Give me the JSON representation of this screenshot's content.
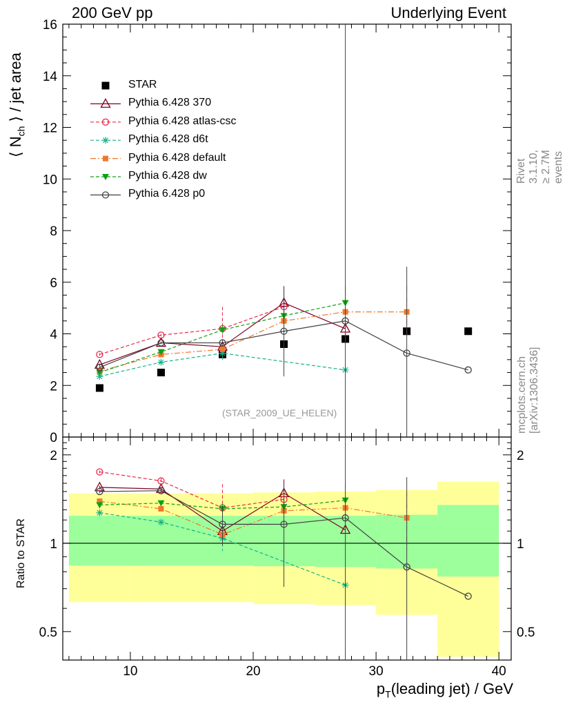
{
  "header": {
    "left": "200 GeV pp",
    "right": "Underlying Event"
  },
  "side_text": {
    "rivet": "Rivet 3.1.10, ≥ 2.7M events",
    "mcplots": "mcplots.cern.ch [arXiv:1306.3436]"
  },
  "watermark": "(STAR_2009_UE_HELEN)",
  "labels": {
    "ytop_prefix": "⟨ N",
    "ytop_sub": "ch",
    "ytop_suffix": " ⟩ / jet area",
    "ybottom": "Ratio to STAR",
    "x_prefix": "p",
    "x_sub": "T",
    "x_suffix": "(leading jet) / GeV"
  },
  "colors": {
    "star": "#000000",
    "p370": "#7f0020",
    "atlas": "#e8284a",
    "d6t": "#14b38a",
    "default": "#f0782a",
    "dw": "#0fa014",
    "p0": "#404040",
    "band_inner": "#9cff9c",
    "band_outer": "#ffff99"
  },
  "chart_data": [
    {
      "type": "line",
      "panel": "main",
      "xlim": [
        4.5,
        41
      ],
      "ylim": [
        0,
        16
      ],
      "xticks": [
        10,
        20,
        30,
        40
      ],
      "yticks": [
        0,
        2,
        4,
        6,
        8,
        10,
        12,
        14,
        16
      ],
      "series": [
        {
          "name": "STAR",
          "marker": "square",
          "color": "#000000",
          "x": [
            7.5,
            12.5,
            17.5,
            22.5,
            27.5,
            32.5,
            37.5
          ],
          "y": [
            1.9,
            2.5,
            3.2,
            3.6,
            3.8,
            4.1,
            4.1
          ]
        },
        {
          "name": "Pythia 6.428 370",
          "marker": "triangle-open",
          "color": "#7f0020",
          "dash": "",
          "x": [
            7.5,
            12.5,
            17.5,
            22.5,
            27.5
          ],
          "y": [
            2.8,
            3.65,
            3.5,
            5.2,
            4.2
          ],
          "err": [
            0.05,
            0.05,
            0.1,
            0.65,
            0
          ]
        },
        {
          "name": "Pythia 6.428 atlas-csc",
          "marker": "circle-open",
          "color": "#e8284a",
          "dash": "5,3",
          "x": [
            7.5,
            12.5,
            17.5,
            22.5
          ],
          "y": [
            3.2,
            3.95,
            4.2,
            5.05
          ],
          "err": [
            0.05,
            0.05,
            0.85,
            0.7
          ]
        },
        {
          "name": "Pythia 6.428 d6t",
          "marker": "asterisk",
          "color": "#14b38a",
          "dash": "5,3",
          "x": [
            7.5,
            12.5,
            17.5,
            27.5
          ],
          "y": [
            2.35,
            2.9,
            3.25,
            2.6
          ],
          "err": [
            0.05,
            0.05,
            0.3,
            0
          ]
        },
        {
          "name": "Pythia 6.428 default",
          "marker": "square-filled",
          "color": "#f0782a",
          "dash": "8,3,2,3",
          "x": [
            7.5,
            12.5,
            17.5,
            22.5,
            27.5,
            32.5
          ],
          "y": [
            2.55,
            3.2,
            3.4,
            4.5,
            4.85,
            4.85
          ],
          "err": [
            0.05,
            0.05,
            0.1,
            0.3,
            1.0,
            1.0
          ]
        },
        {
          "name": "Pythia 6.428 dw",
          "marker": "triangle-down-filled",
          "color": "#0fa014",
          "dash": "5,3",
          "x": [
            7.5,
            12.5,
            17.5,
            22.5,
            27.5
          ],
          "y": [
            2.5,
            3.3,
            4.15,
            4.7,
            5.2
          ],
          "err": [
            0.05,
            0.05,
            0.2,
            0.3,
            0
          ]
        },
        {
          "name": "Pythia 6.428 p0",
          "marker": "circle-open",
          "color": "#404040",
          "dash": "",
          "x": [
            7.5,
            12.5,
            17.5,
            22.5,
            27.5,
            32.5,
            37.5
          ],
          "y": [
            2.7,
            3.65,
            3.65,
            4.1,
            4.5,
            3.25,
            2.6
          ],
          "err": [
            0.05,
            0.05,
            0.1,
            1.75,
            20,
            3.35,
            0
          ]
        }
      ]
    },
    {
      "type": "line",
      "panel": "ratio",
      "xlim": [
        4.5,
        41
      ],
      "ylim": [
        0.4,
        2.3
      ],
      "yscale": "log",
      "yticks": [
        0.5,
        1,
        2
      ],
      "bands": [
        {
          "x0": 5,
          "x1": 10,
          "inner": [
            0.84,
            1.24
          ],
          "outer": [
            0.63,
            1.48
          ]
        },
        {
          "x0": 10,
          "x1": 20,
          "inner": [
            0.84,
            1.24
          ],
          "outer": [
            0.63,
            1.48
          ]
        },
        {
          "x0": 20,
          "x1": 25,
          "inner": [
            0.835,
            1.24
          ],
          "outer": [
            0.62,
            1.49
          ]
        },
        {
          "x0": 25,
          "x1": 30,
          "inner": [
            0.83,
            1.24
          ],
          "outer": [
            0.615,
            1.5
          ]
        },
        {
          "x0": 30,
          "x1": 35,
          "inner": [
            0.82,
            1.25
          ],
          "outer": [
            0.57,
            1.52
          ]
        },
        {
          "x0": 35,
          "x1": 40,
          "inner": [
            0.77,
            1.35
          ],
          "outer": [
            0.41,
            1.62
          ]
        }
      ],
      "series": [
        {
          "name": "Pythia 6.428 370",
          "marker": "triangle-open",
          "color": "#7f0020",
          "dash": "",
          "x": [
            7.5,
            12.5,
            17.5,
            22.5,
            27.5
          ],
          "y": [
            1.55,
            1.53,
            1.1,
            1.48,
            1.11
          ],
          "err": [
            0.02,
            0.02,
            0.04,
            0.17,
            0
          ]
        },
        {
          "name": "Pythia 6.428 atlas-csc",
          "marker": "circle-open",
          "color": "#e8284a",
          "dash": "5,3",
          "x": [
            7.5,
            12.5,
            17.5,
            22.5
          ],
          "y": [
            1.75,
            1.63,
            1.32,
            1.41
          ],
          "err": [
            0.02,
            0.03,
            0.27,
            0.2
          ]
        },
        {
          "name": "Pythia 6.428 d6t",
          "marker": "asterisk",
          "color": "#14b38a",
          "dash": "5,3",
          "x": [
            7.5,
            12.5,
            17.5,
            27.5
          ],
          "y": [
            1.27,
            1.18,
            1.04,
            0.72
          ],
          "err": [
            0.02,
            0.02,
            0.1,
            0
          ]
        },
        {
          "name": "Pythia 6.428 default",
          "marker": "square-filled",
          "color": "#f0782a",
          "dash": "8,3,2,3",
          "x": [
            7.5,
            12.5,
            17.5,
            22.5,
            27.5,
            32.5
          ],
          "y": [
            1.39,
            1.31,
            1.07,
            1.29,
            1.32,
            1.22
          ],
          "err": [
            0.02,
            0.02,
            0.04,
            0.09,
            0.27,
            0.27
          ]
        },
        {
          "name": "Pythia 6.428 dw",
          "marker": "triangle-down-filled",
          "color": "#0fa014",
          "dash": "5,3",
          "x": [
            7.5,
            12.5,
            17.5,
            22.5,
            27.5
          ],
          "y": [
            1.35,
            1.37,
            1.31,
            1.33,
            1.4
          ],
          "err": [
            0.02,
            0.02,
            0.06,
            0.08,
            0
          ]
        },
        {
          "name": "Pythia 6.428 p0",
          "marker": "circle-open",
          "color": "#404040",
          "dash": "",
          "x": [
            7.5,
            12.5,
            17.5,
            22.5,
            27.5,
            32.5,
            37.5
          ],
          "y": [
            1.5,
            1.51,
            1.16,
            1.16,
            1.22,
            0.83,
            0.66
          ],
          "err": [
            0.02,
            0.02,
            0.18,
            0.45,
            3,
            0.85,
            0
          ]
        }
      ]
    }
  ]
}
